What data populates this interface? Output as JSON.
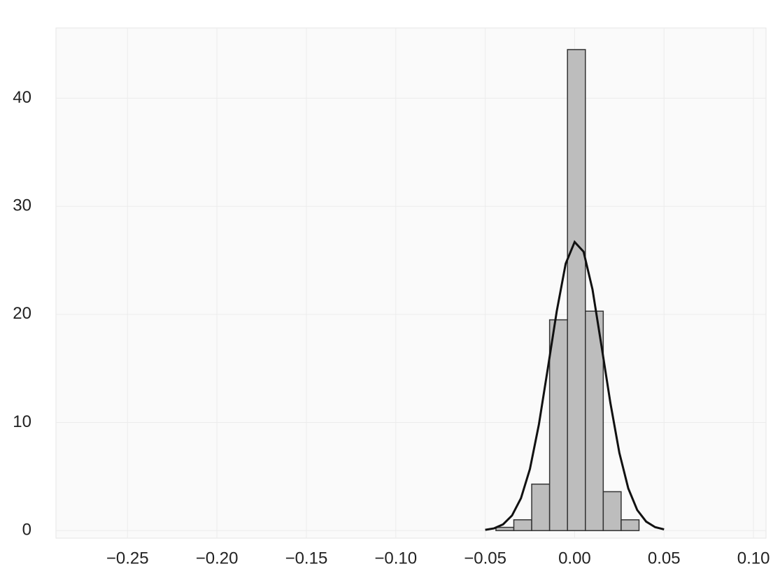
{
  "chart_data": {
    "type": "histogram",
    "bins": [
      -0.044,
      -0.034,
      -0.024,
      -0.014,
      -0.004,
      0.006,
      0.016,
      0.026,
      0.036
    ],
    "values": [
      0.3,
      1,
      4.3,
      19.5,
      44.5,
      20.3,
      3.6,
      1
    ],
    "color": "#bdbdbd",
    "edge_color": "#333333",
    "overlay": {
      "type": "line",
      "color": "#111111",
      "x": [
        -0.05,
        -0.045,
        -0.04,
        -0.035,
        -0.03,
        -0.025,
        -0.02,
        -0.015,
        -0.01,
        -0.005,
        0,
        0.005,
        0.01,
        0.015,
        0.02,
        0.025,
        0.03,
        0.035,
        0.04,
        0.045,
        0.05
      ],
      "values": [
        0.07,
        0.21,
        0.58,
        1.4,
        3.0,
        5.7,
        9.8,
        15.0,
        20.3,
        24.7,
        26.7,
        25.8,
        22.3,
        17.1,
        11.8,
        7.2,
        3.9,
        1.9,
        0.83,
        0.32,
        0.11
      ]
    },
    "xlim": [
      -0.29,
      0.107
    ],
    "ylim": [
      -0.7,
      46.5
    ],
    "xticks": [
      {
        "value": -0.25,
        "label": "−0.25"
      },
      {
        "value": -0.2,
        "label": "−0.20"
      },
      {
        "value": -0.15,
        "label": "−0.15"
      },
      {
        "value": -0.1,
        "label": "−0.10"
      },
      {
        "value": -0.05,
        "label": "−0.05"
      },
      {
        "value": 0,
        "label": "0.00"
      },
      {
        "value": 0.05,
        "label": "0.05"
      },
      {
        "value": 0.1,
        "label": "0.10"
      }
    ],
    "yticks": [
      0,
      10,
      20,
      30,
      40
    ],
    "grid": true
  }
}
